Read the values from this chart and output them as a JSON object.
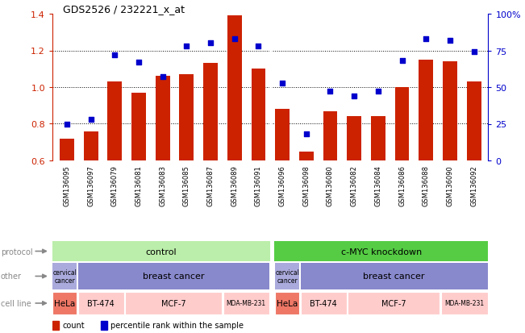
{
  "title": "GDS2526 / 232221_x_at",
  "samples": [
    "GSM136095",
    "GSM136097",
    "GSM136079",
    "GSM136081",
    "GSM136083",
    "GSM136085",
    "GSM136087",
    "GSM136089",
    "GSM136091",
    "GSM136096",
    "GSM136098",
    "GSM136080",
    "GSM136082",
    "GSM136084",
    "GSM136086",
    "GSM136088",
    "GSM136090",
    "GSM136092"
  ],
  "bar_values": [
    0.72,
    0.76,
    1.03,
    0.97,
    1.06,
    1.07,
    1.13,
    1.39,
    1.1,
    0.88,
    0.65,
    0.87,
    0.84,
    0.84,
    1.0,
    1.15,
    1.14,
    1.03
  ],
  "dot_values": [
    25,
    28,
    72,
    67,
    57,
    78,
    80,
    83,
    78,
    53,
    18,
    47,
    44,
    47,
    68,
    83,
    82,
    74
  ],
  "ylim_left": [
    0.6,
    1.4
  ],
  "ylim_right": [
    0,
    100
  ],
  "yticks_left": [
    0.6,
    0.8,
    1.0,
    1.2,
    1.4
  ],
  "yticks_right": [
    0,
    25,
    50,
    75,
    100
  ],
  "ytick_labels_right": [
    "0",
    "25",
    "50",
    "75",
    "100%"
  ],
  "bar_color": "#cc2200",
  "dot_color": "#0000cc",
  "protocol_color_control": "#bbeeaa",
  "protocol_color_knockdown": "#55cc44",
  "other_color_cervical": "#aaaadd",
  "other_color_breast": "#8888cc",
  "cell_hela_color": "#ee7766",
  "cell_other_color": "#ffcccc",
  "left_label_color": "#cc2200",
  "right_label_color": "#0000cc",
  "row_label_color": "#888888",
  "xtick_bg": "#dddddd"
}
